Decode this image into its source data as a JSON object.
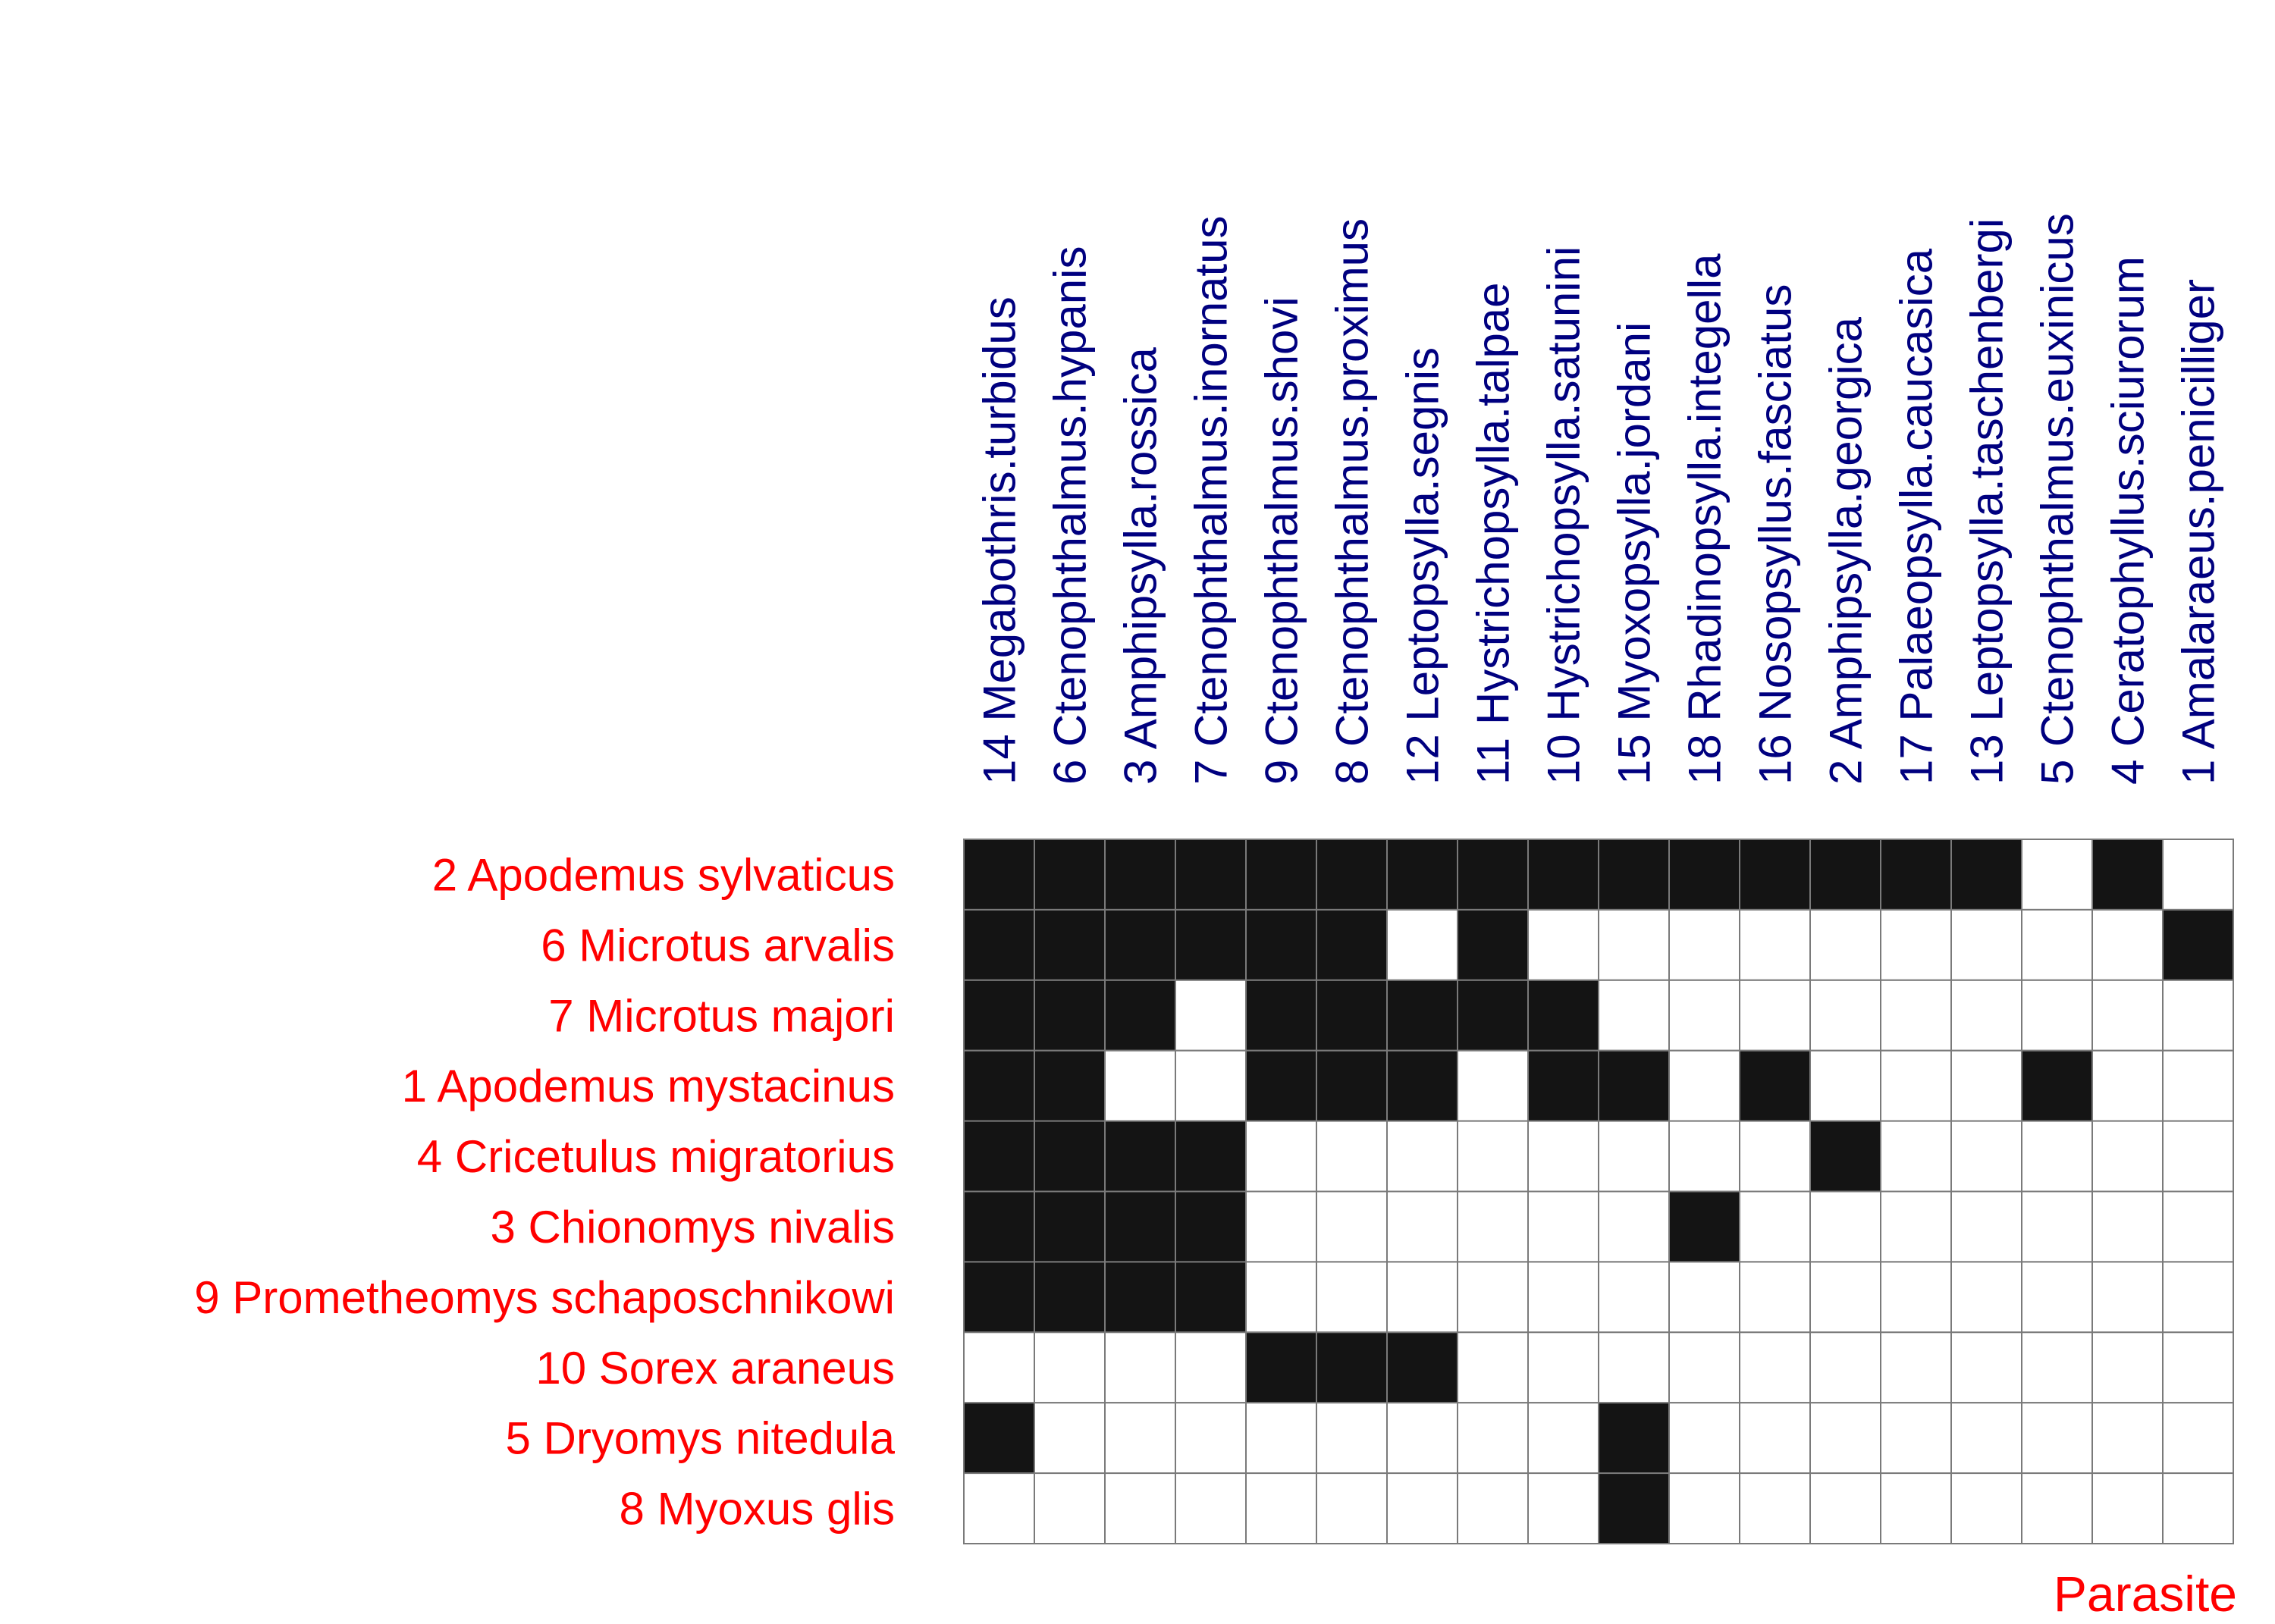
{
  "chart_data": {
    "type": "heatmap",
    "xlabel": "Parasite",
    "columns": [
      "14 Megabothris.turbidus",
      "6 Ctenophthalmus.hypanis",
      "3 Amphipsylla.rossica",
      "7 Ctenophthalmus.inornatus",
      "9 Ctenophthalmus.shovi",
      "8 Ctenophthalmus.proximus",
      "12 Leptopsylla.segnis",
      "11 Hystrichopsylla.talpae",
      "10 Hystrichopsylla.satunini",
      "15 Myoxopsylla.jordani",
      "18 Rhadinopsylla.integella",
      "16 Nosopsyllus.fasciatus",
      "2 Amphipsylla.georgica",
      "17 Palaeopsylla.caucasica",
      "13 Leptopsylla.taschenbergi",
      "5 Ctenophthalmus.euxinicus",
      "4 Ceratophyllus.sciurorum",
      "1 Amalaraeus.penicilliger"
    ],
    "rows": [
      "2 Apodemus sylvaticus",
      "6 Microtus arvalis",
      "7 Microtus majori",
      "1 Apodemus mystacinus",
      "4 Cricetulus migratorius",
      "3 Chionomys nivalis",
      "9 Prometheomys schaposchnikowi",
      "10 Sorex araneus",
      "5 Dryomys nitedula",
      "8 Myoxus glis"
    ],
    "values": [
      [
        1,
        1,
        1,
        1,
        1,
        1,
        1,
        1,
        1,
        1,
        1,
        1,
        1,
        1,
        1,
        0,
        1,
        0
      ],
      [
        1,
        1,
        1,
        1,
        1,
        1,
        0,
        1,
        0,
        0,
        0,
        0,
        0,
        0,
        0,
        0,
        0,
        1
      ],
      [
        1,
        1,
        1,
        0,
        1,
        1,
        1,
        1,
        1,
        0,
        0,
        0,
        0,
        0,
        0,
        0,
        0,
        0
      ],
      [
        1,
        1,
        0,
        0,
        1,
        1,
        1,
        0,
        1,
        1,
        0,
        1,
        0,
        0,
        0,
        1,
        0,
        0
      ],
      [
        1,
        1,
        1,
        1,
        0,
        0,
        0,
        0,
        0,
        0,
        0,
        0,
        1,
        0,
        0,
        0,
        0,
        0
      ],
      [
        1,
        1,
        1,
        1,
        0,
        0,
        0,
        0,
        0,
        0,
        1,
        0,
        0,
        0,
        0,
        0,
        0,
        0
      ],
      [
        1,
        1,
        1,
        1,
        0,
        0,
        0,
        0,
        0,
        0,
        0,
        0,
        0,
        0,
        0,
        0,
        0,
        0
      ],
      [
        0,
        0,
        0,
        0,
        1,
        1,
        1,
        0,
        0,
        0,
        0,
        0,
        0,
        0,
        0,
        0,
        0,
        0
      ],
      [
        1,
        0,
        0,
        0,
        0,
        0,
        0,
        0,
        0,
        1,
        0,
        0,
        0,
        0,
        0,
        0,
        0,
        0
      ],
      [
        0,
        0,
        0,
        0,
        0,
        0,
        0,
        0,
        0,
        1,
        0,
        0,
        0,
        0,
        0,
        0,
        0,
        0
      ]
    ],
    "colors": {
      "present": "#141414",
      "absent": "#ffffff",
      "grid": "#7a7a7a",
      "row_label": "#ff0000",
      "column_label": "#00007f",
      "axis_label": "#ff0000"
    }
  }
}
